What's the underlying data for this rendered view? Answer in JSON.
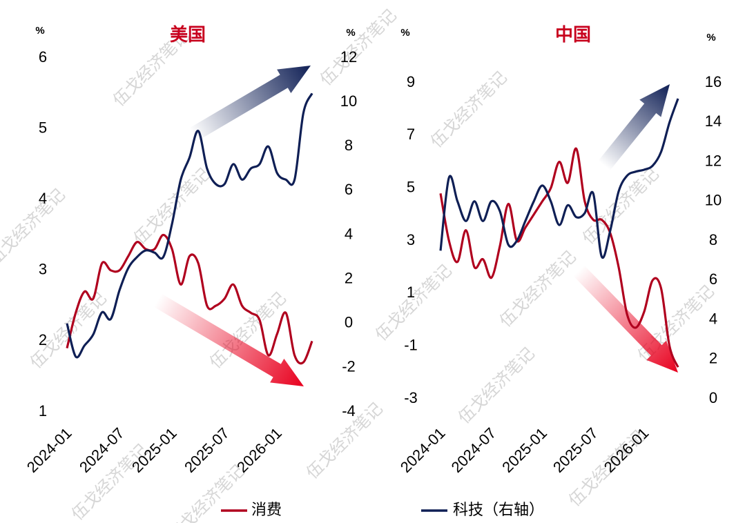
{
  "watermark": "伍戈经济笔记",
  "legend": [
    {
      "name": "消费",
      "color": "#b0001e"
    },
    {
      "name": "科技（右轴）",
      "color": "#0f1f55"
    }
  ],
  "chart_data": [
    {
      "type": "line",
      "title": "美国",
      "y_unit": "%",
      "y2_unit": "%",
      "x": [
        "2024-01",
        "2024-02",
        "2024-03",
        "2024-04",
        "2024-05",
        "2024-06",
        "2024-07",
        "2024-08",
        "2024-09",
        "2024-10",
        "2024-11",
        "2024-12",
        "2025-01",
        "2025-02",
        "2025-03",
        "2025-04",
        "2025-05",
        "2025-06",
        "2025-07",
        "2025-08",
        "2025-09",
        "2025-10",
        "2025-11",
        "2025-12",
        "2026-01",
        "2026-02",
        "2026-03",
        "2026-04",
        "2026-05"
      ],
      "xticks": [
        "2024-01",
        "2024-07",
        "2025-01",
        "2025-07",
        "2026-01"
      ],
      "ylim": [
        1,
        6
      ],
      "yticks": [
        1,
        2,
        3,
        4,
        5,
        6
      ],
      "y2lim": [
        -4,
        12
      ],
      "y2ticks": [
        -4,
        -2,
        0,
        2,
        4,
        6,
        8,
        10,
        12
      ],
      "series": [
        {
          "color": "#b0001e",
          "values": [
            1.9,
            2.4,
            2.7,
            2.6,
            3.1,
            3.0,
            3.0,
            3.2,
            3.4,
            3.3,
            3.3,
            3.5,
            3.3,
            2.8,
            3.2,
            3.1,
            2.5,
            2.5,
            2.6,
            2.8,
            2.5,
            2.4,
            2.3,
            1.8,
            2.1,
            2.4,
            1.8,
            1.7,
            2.0
          ]
        },
        {
          "color": "#0f1f55",
          "axis": "y2",
          "values": [
            0,
            -1.5,
            -1,
            -0.5,
            0.5,
            0.2,
            1.5,
            2.5,
            3,
            3.3,
            3.2,
            3.0,
            4.5,
            6.5,
            7.5,
            8.7,
            7,
            6.3,
            6.3,
            7.2,
            6.5,
            7,
            7.2,
            8,
            6.8,
            6.5,
            6.5,
            9.5,
            10.4
          ]
        }
      ]
    },
    {
      "type": "line",
      "title": "中国",
      "y_unit": "%",
      "y2_unit": "%",
      "x": [
        "2024-01",
        "2024-02",
        "2024-03",
        "2024-04",
        "2024-05",
        "2024-06",
        "2024-07",
        "2024-08",
        "2024-09",
        "2024-10",
        "2024-11",
        "2024-12",
        "2025-01",
        "2025-02",
        "2025-03",
        "2025-04",
        "2025-05",
        "2025-06",
        "2025-07",
        "2025-08",
        "2025-09",
        "2025-10",
        "2025-11",
        "2025-12",
        "2026-01",
        "2026-02",
        "2026-03",
        "2026-04",
        "2026-05"
      ],
      "xticks": [
        "2024-01",
        "2024-07",
        "2025-01",
        "2025-07",
        "2026-01"
      ],
      "ylim": [
        -3,
        9
      ],
      "yticks": [
        -3,
        -1,
        1,
        3,
        5,
        7,
        9
      ],
      "y2lim": [
        0,
        16
      ],
      "y2ticks": [
        0,
        2,
        4,
        6,
        8,
        10,
        12,
        14,
        16
      ],
      "series": [
        {
          "color": "#b0001e",
          "values": [
            4.8,
            3.0,
            2.2,
            3.4,
            2.0,
            2.3,
            1.6,
            2.8,
            4.4,
            3.0,
            3.5,
            4.0,
            4.5,
            5.0,
            6.0,
            5.2,
            6.5,
            4.5,
            3.8,
            3.8,
            3.3,
            2.0,
            0.2,
            -0.3,
            0.3,
            1.5,
            1.2,
            -1.0,
            -1.8
          ]
        },
        {
          "color": "#0f1f55",
          "axis": "y2",
          "values": [
            7.5,
            11.2,
            10,
            9,
            10,
            9,
            10,
            9.5,
            7.8,
            8,
            9,
            10,
            10.8,
            10,
            8.8,
            9.8,
            9.2,
            9.4,
            10.4,
            7.2,
            8.5,
            10.5,
            11.3,
            11.5,
            11.6,
            11.8,
            12.5,
            14,
            15.2
          ]
        }
      ]
    }
  ]
}
